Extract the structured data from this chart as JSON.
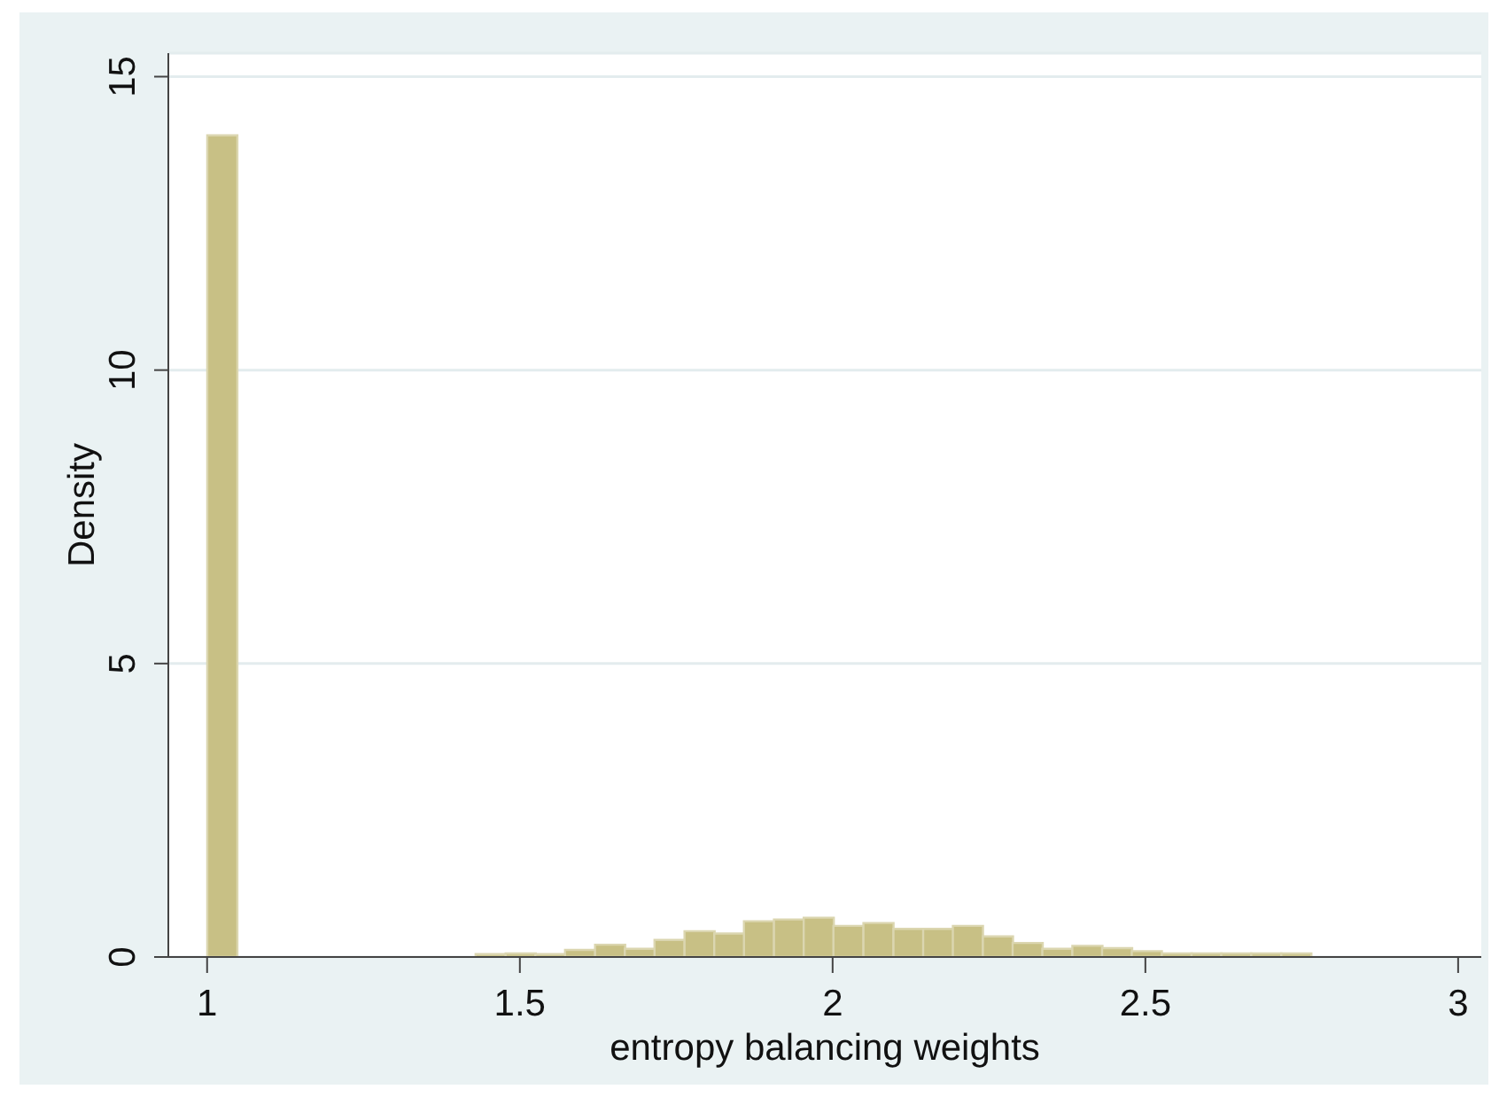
{
  "chart_data": {
    "type": "histogram",
    "xlabel": "entropy balancing weights",
    "ylabel": "Density",
    "bins": [
      1,
      1.048,
      1.429,
      1.477,
      1.525,
      1.572,
      1.62,
      1.668,
      1.715,
      1.763,
      1.811,
      1.858,
      1.906,
      1.954,
      2.001,
      2.049,
      2.097,
      2.145,
      2.192,
      2.24,
      2.288,
      2.335,
      2.383,
      2.431,
      2.478,
      2.526,
      2.574,
      2.621,
      2.669,
      2.717,
      2.765
    ],
    "values": [
      14.0,
      0,
      0.05,
      0.06,
      0.05,
      0.12,
      0.21,
      0.14,
      0.29,
      0.44,
      0.4,
      0.61,
      0.64,
      0.67,
      0.53,
      0.58,
      0.48,
      0.48,
      0.53,
      0.35,
      0.24,
      0.14,
      0.19,
      0.15,
      0.1,
      0.06,
      0.06,
      0.06,
      0.06,
      0.06
    ],
    "color": "#c8c085",
    "xlim": [
      0.938,
      3.037
    ],
    "ylim": [
      0,
      15.4
    ],
    "xticks": [
      1,
      1.5,
      2,
      2.5,
      3
    ],
    "yticks": [
      0,
      5,
      10,
      15
    ],
    "grid": "y"
  }
}
